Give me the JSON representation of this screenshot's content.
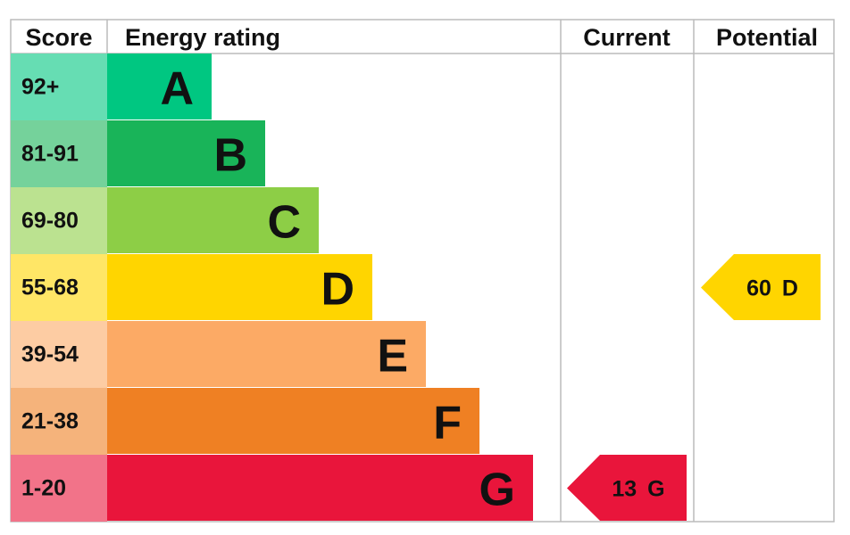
{
  "header": {
    "score": "Score",
    "rating": "Energy rating",
    "current": "Current",
    "potential": "Potential"
  },
  "bands": [
    {
      "score": "92+",
      "letter": "A",
      "color": "#00c781"
    },
    {
      "score": "81-91",
      "letter": "B",
      "color": "#19b459"
    },
    {
      "score": "69-80",
      "letter": "C",
      "color": "#8dce46"
    },
    {
      "score": "55-68",
      "letter": "D",
      "color": "#ffd500"
    },
    {
      "score": "39-54",
      "letter": "E",
      "color": "#fcaa65"
    },
    {
      "score": "21-38",
      "letter": "F",
      "color": "#ef8023"
    },
    {
      "score": "1-20",
      "letter": "G",
      "color": "#e9153b"
    }
  ],
  "current": {
    "score": 13,
    "band": "G"
  },
  "potential": {
    "score": 60,
    "band": "D"
  }
}
